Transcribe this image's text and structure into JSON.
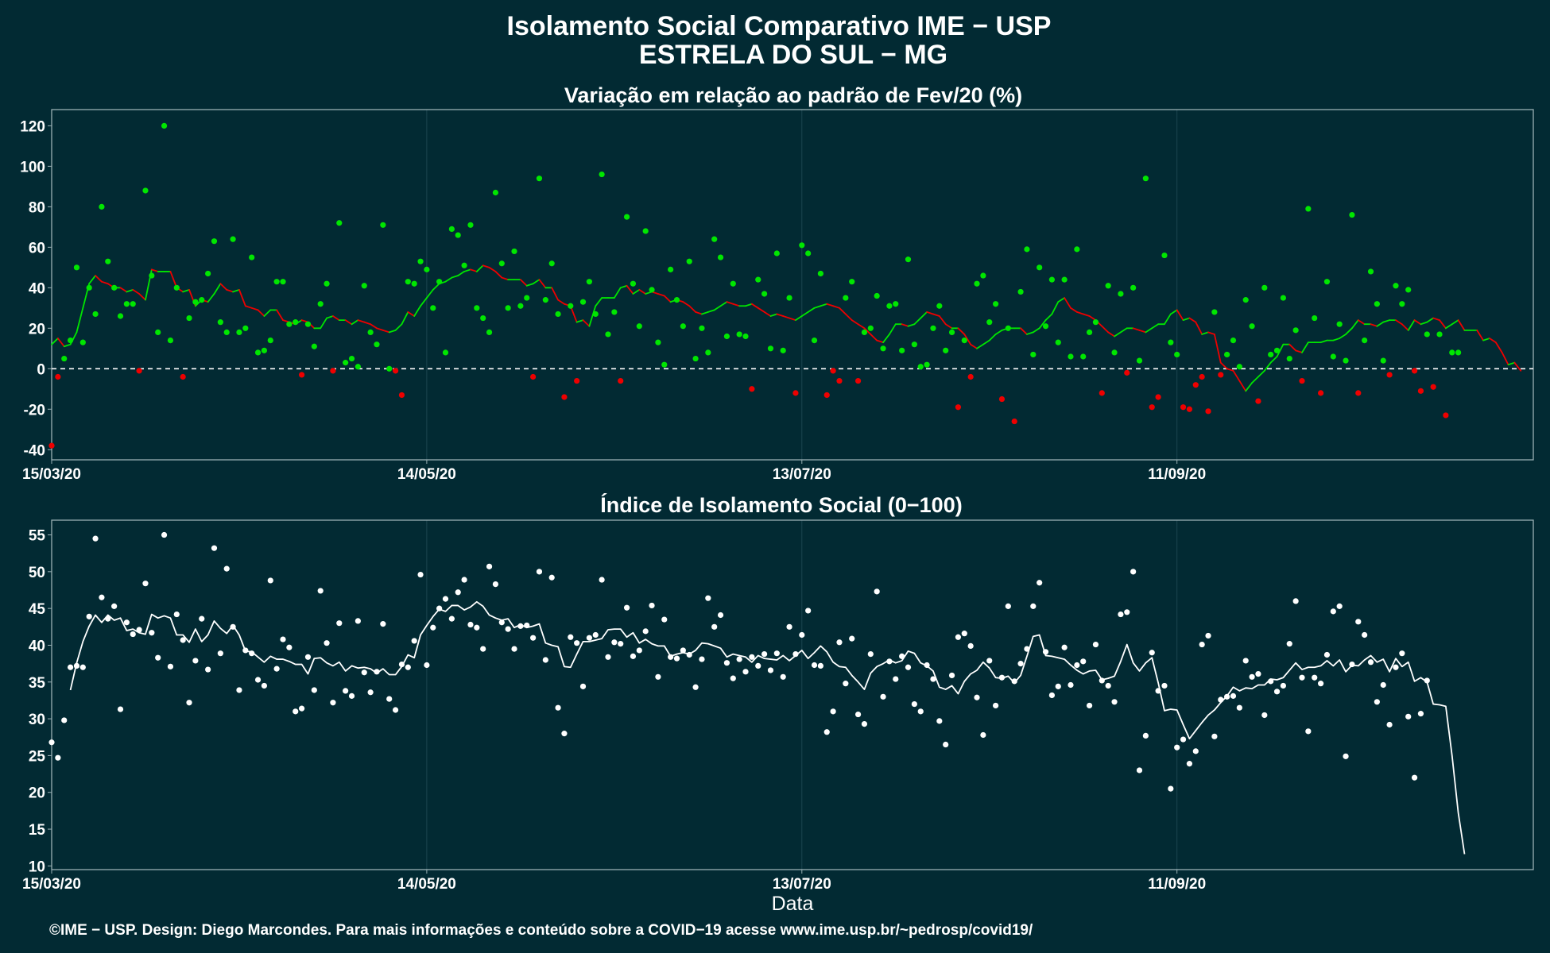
{
  "header": {
    "title_line1": "Isolamento Social Comparativo IME − USP",
    "title_line2": "ESTRELA DO SUL − MG"
  },
  "footer": {
    "credit": "©IME − USP. Design: Diego Marcondes. Para mais informações e conteúdo sobre a COVID−19 acesse www.ime.usp.br/~pedrosp/covid19/"
  },
  "colors": {
    "background": "#022a33",
    "positive": "#00e600",
    "negative": "#ee0000",
    "index_series": "#ffffff",
    "frame": "#9ab0b4",
    "grid": "#1c4650"
  },
  "chart_data": [
    {
      "type": "scatter",
      "title": "Variação em relação ao padrão de Fev/20 (%)",
      "xlabel": "",
      "ylabel": "",
      "x_start": "15/03/20",
      "x_end": "07/11/20",
      "x_ticks": [
        "15/03/20",
        "14/05/20",
        "13/07/20",
        "11/09/20"
      ],
      "ylim": [
        -45,
        128
      ],
      "y_ticks": [
        -40,
        -20,
        0,
        20,
        40,
        60,
        80,
        100,
        120
      ],
      "reference_line": 0,
      "grid": true,
      "points_description": "daily values, green when >= 0, red when < 0",
      "values": [
        -38,
        -4,
        5,
        14,
        50,
        13,
        40,
        27,
        80,
        53,
        40,
        26,
        32,
        32,
        -1,
        88,
        46,
        18,
        120,
        14,
        40,
        -4,
        25,
        33,
        34,
        47,
        63,
        23,
        18,
        64,
        18,
        20,
        55,
        8,
        9,
        14,
        43,
        43,
        22,
        23,
        -3,
        22,
        11,
        32,
        42,
        -1,
        72,
        3,
        5,
        1,
        41,
        18,
        12,
        71,
        0,
        -1,
        -13,
        43,
        42,
        53,
        49,
        30,
        43,
        8,
        69,
        66,
        51,
        71,
        30,
        25,
        18,
        87,
        52,
        30,
        58,
        31,
        35,
        -4,
        94,
        34,
        52,
        27,
        -14,
        31,
        -6,
        33,
        43,
        27,
        96,
        17,
        28,
        -6,
        75,
        42,
        21,
        68,
        39,
        13,
        2,
        49,
        34,
        21,
        53,
        5,
        20,
        8,
        64,
        55,
        16,
        42,
        17,
        16,
        -10,
        44,
        37,
        10,
        57,
        9,
        35,
        -12,
        61,
        57,
        14,
        47,
        -13,
        -1,
        -6,
        35,
        43,
        -6,
        18,
        20,
        36,
        10,
        31,
        32,
        9,
        54,
        12,
        1,
        2,
        20,
        31,
        9,
        18,
        -19,
        14,
        -4,
        42,
        46,
        23,
        32,
        -15,
        20,
        -26,
        38,
        59,
        7,
        50,
        21,
        44,
        13,
        44,
        6,
        59,
        6,
        18,
        23,
        -12,
        41,
        8,
        37,
        -2,
        40,
        4,
        94,
        -19,
        -14,
        56,
        13,
        7,
        -19,
        -20,
        -8,
        -4,
        -21,
        28,
        -3,
        7,
        14,
        1,
        34,
        21,
        -16,
        40,
        7,
        9,
        35,
        5,
        19,
        -6,
        79,
        25,
        -12,
        43,
        6,
        22,
        4,
        76,
        -12,
        14,
        48,
        32,
        4,
        -3,
        41,
        32,
        39,
        -1,
        -11,
        17,
        -9,
        17,
        -23,
        8,
        8
      ],
      "moving_average": [
        12,
        15,
        11,
        12,
        18,
        30,
        42,
        46,
        43,
        42,
        40,
        40,
        38,
        39,
        37,
        34,
        49,
        48,
        48,
        48,
        40,
        38,
        39,
        31,
        34,
        33,
        37,
        42,
        39,
        38,
        39,
        31,
        30,
        29,
        26,
        29,
        29,
        24,
        23,
        22,
        24,
        23,
        20,
        20,
        25,
        26,
        24,
        24,
        22,
        24,
        23,
        22,
        20,
        19,
        18,
        19,
        22,
        28,
        26,
        31,
        35,
        39,
        42,
        43,
        45,
        46,
        48,
        49,
        48,
        51,
        50,
        48,
        45,
        44,
        44,
        44,
        41,
        42,
        44,
        40,
        40,
        34,
        32,
        31,
        23,
        24,
        21,
        31,
        35,
        35,
        35,
        40,
        41,
        37,
        39,
        37,
        38,
        37,
        36,
        33,
        34,
        33,
        31,
        28,
        27,
        28,
        29,
        31,
        33,
        32,
        31,
        31,
        32,
        30,
        28,
        26,
        27,
        26,
        25,
        24,
        26,
        28,
        30,
        31,
        32,
        31,
        30,
        27,
        24,
        22,
        20,
        17,
        14,
        13,
        17,
        22,
        22,
        21,
        22,
        25,
        28,
        27,
        26,
        22,
        20,
        20,
        17,
        12,
        10,
        12,
        14,
        17,
        19,
        20,
        20,
        20,
        17,
        18,
        20,
        24,
        27,
        33,
        35,
        30,
        28,
        27,
        26,
        24,
        21,
        18,
        16,
        18,
        20,
        20,
        19,
        18,
        20,
        22,
        22,
        27,
        29,
        24,
        25,
        23,
        17,
        18,
        17,
        3,
        0,
        -1,
        -6,
        -11,
        -7,
        -4,
        -1,
        3,
        6,
        12,
        12,
        9,
        8,
        13,
        13,
        13,
        14,
        14,
        15,
        17,
        20,
        24,
        22,
        22,
        21,
        23,
        24,
        24,
        22,
        19,
        24,
        22,
        23,
        25,
        24,
        20,
        22,
        24,
        19,
        19,
        19,
        14,
        15,
        13,
        8,
        2,
        3,
        -1
      ]
    },
    {
      "type": "scatter",
      "title": "Índice de Isolamento Social (0−100)",
      "xlabel": "Data",
      "ylabel": "",
      "x_start": "15/03/20",
      "x_end": "07/11/20",
      "x_ticks": [
        "15/03/20",
        "14/05/20",
        "13/07/20",
        "11/09/20"
      ],
      "ylim": [
        9.5,
        57
      ],
      "y_ticks": [
        10,
        15,
        20,
        25,
        30,
        35,
        40,
        45,
        50,
        55
      ],
      "grid": true,
      "values": [
        26.8,
        24.7,
        29.8,
        37,
        37.2,
        37,
        43.9,
        54.5,
        46.5,
        43.6,
        45.3,
        31.3,
        43.1,
        41.5,
        42.1,
        48.4,
        41.7,
        38.3,
        55,
        37.1,
        44.2,
        40.7,
        32.2,
        37.9,
        43.6,
        36.7,
        53.2,
        38.9,
        50.4,
        42.5,
        33.9,
        39.3,
        38.9,
        35.3,
        34.5,
        48.8,
        36.8,
        40.8,
        39.7,
        31,
        31.4,
        38.4,
        33.9,
        47.4,
        40.3,
        32.2,
        43,
        33.8,
        33.1,
        43.3,
        36.3,
        33.6,
        36.4,
        42.9,
        32.7,
        31.2,
        37.4,
        37,
        40.6,
        49.6,
        37.3,
        42.4,
        45,
        46.3,
        43.6,
        47.2,
        48.9,
        42.8,
        42.4,
        39.5,
        50.7,
        48.3,
        43.1,
        42.2,
        39.5,
        42.6,
        42.7,
        41,
        50,
        38,
        49.2,
        31.5,
        28,
        41.1,
        40.3,
        34.4,
        41,
        41.4,
        48.9,
        38.4,
        40.4,
        40.2,
        45.1,
        38.5,
        39.3,
        41.9,
        45.4,
        35.7,
        43.5,
        38.4,
        38.2,
        39.3,
        38.7,
        34.3,
        38.1,
        46.4,
        42.5,
        44.1,
        37.6,
        35.5,
        38.1,
        36.4,
        38.4,
        37.2,
        38.8,
        36.6,
        38.9,
        35.7,
        42.5,
        38.8,
        41.4,
        44.7,
        37.3,
        37.2,
        28.2,
        31,
        40.4,
        34.8,
        40.9,
        30.6,
        29.3,
        38.8,
        47.3,
        33,
        37.8,
        35.4,
        38.5,
        37,
        32,
        31,
        37.3,
        35.4,
        29.7,
        26.5,
        35.9,
        41.1,
        41.6,
        39.9,
        32.9,
        27.8,
        37.9,
        31.8,
        35.6,
        45.3,
        35.1,
        37.5,
        39.5,
        45.3,
        48.5,
        39.1,
        33.2,
        34.4,
        39.7,
        34.6,
        37.3,
        37.8,
        31.8,
        40.1,
        35.2,
        34.5,
        32.3,
        44.2,
        44.5,
        50,
        23,
        27.7,
        39,
        33.8,
        34.5,
        20.5,
        26.1,
        27.2,
        23.9,
        25.6,
        40.1,
        41.3,
        27.6,
        32.6,
        33,
        33.1,
        31.5,
        37.9,
        35.7,
        36.1,
        30.5,
        35.1,
        33.7,
        34.5,
        40.2,
        46,
        35.6,
        28.3,
        35.6,
        34.8,
        38.7,
        44.6,
        45.3,
        24.9,
        37.4,
        43.2,
        41.4,
        37.7,
        32.3,
        34.6,
        29.2,
        37,
        38.9,
        30.3,
        22,
        30.7,
        35.2
      ],
      "moving_average": [
        null,
        null,
        null,
        33.9,
        37.6,
        40.5,
        42.6,
        44.1,
        43.1,
        44.1,
        43.4,
        43.7,
        42,
        42.2,
        41.7,
        41.5,
        44.2,
        43.7,
        44,
        43.7,
        41.4,
        41.4,
        40.4,
        42.2,
        40.5,
        41.4,
        43.3,
        42.3,
        41.6,
        42.7,
        41.4,
        39.2,
        39.1,
        38.4,
        37.7,
        38.5,
        38.1,
        38.1,
        37.8,
        37.4,
        37.4,
        36.1,
        38.2,
        38.3,
        37.6,
        37.2,
        37.7,
        36.5,
        37.2,
        36.9,
        37,
        36.8,
        36.2,
        36.8,
        36,
        36,
        37.1,
        38.7,
        38.3,
        41.4,
        42.7,
        43.9,
        44.9,
        44.6,
        45.4,
        45.4,
        44.8,
        45.2,
        45.9,
        45.3,
        44.1,
        43.7,
        43.4,
        43.6,
        42.4,
        42.8,
        42.4,
        42.6,
        42.9,
        40.3,
        40,
        39.8,
        37.1,
        37,
        38.8,
        40.5,
        40.5,
        40.7,
        40.9,
        42.1,
        42.2,
        42.2,
        41.1,
        41.7,
        40.3,
        40.8,
        40.2,
        39.9,
        39.9,
        38.5,
        38.8,
        39,
        38.8,
        39.3,
        40.3,
        40.2,
        39.9,
        39.6,
        38.4,
        38.8,
        38.6,
        38.4,
        37.7,
        38.6,
        38.2,
        38.1,
        38,
        38.6,
        37.9,
        38.6,
        39.3,
        38.2,
        39,
        39.9,
        39.1,
        37.7,
        37.1,
        37,
        35.9,
        35,
        34,
        36.2,
        37.1,
        37.5,
        38,
        37.6,
        37.9,
        39.2,
        38.9,
        37.6,
        37.2,
        36.5,
        34.3,
        34,
        34.5,
        33.4,
        35.1,
        36.1,
        36.6,
        37.7,
        36.9,
        35.6,
        35.5,
        35.8,
        34.9,
        35.9,
        38.5,
        41.2,
        41.4,
        38.6,
        38.5,
        38.3,
        38.1,
        37.3,
        36.6,
        36.1,
        36.5,
        36.6,
        35.3,
        35.5,
        35.8,
        37.8,
        40.1,
        37.6,
        36.5,
        37.6,
        38.3,
        34.9,
        31.1,
        31.3,
        31.2,
        29.2,
        27.3,
        28.4,
        29.5,
        30.5,
        31.2,
        32.2,
        33.1,
        34.3,
        33.8,
        34.2,
        34.1,
        34.6,
        34.6,
        35.4,
        35.3,
        35.6,
        36.6,
        37.6,
        36.7,
        37,
        37,
        37.2,
        37.9,
        37.2,
        38,
        36.4,
        37.3,
        37.2,
        38,
        38.6,
        37.7,
        38.1,
        36.4,
        38.2,
        37.1,
        37.7,
        35.1,
        35.6,
        35,
        32,
        31.9,
        31.7,
        25,
        17.2,
        11.6
      ]
    }
  ]
}
